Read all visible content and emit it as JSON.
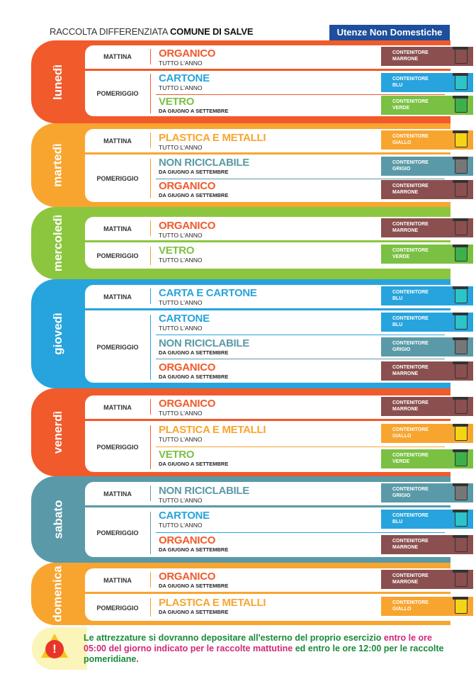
{
  "header": {
    "prefix": "RACCOLTA DIFFERENZIATA ",
    "comune": "COMUNE DI SALVE",
    "utenze": "Utenze Non Domestiche"
  },
  "labels": {
    "mattina": "MATTINA",
    "pomeriggio": "POMERIGGIO",
    "contenitore": "CONTENITORE"
  },
  "days": {
    "lunedi": {
      "name": "lunedì"
    },
    "martedi": {
      "name": "martedì"
    },
    "mercoledi": {
      "name": "mercoledì"
    },
    "giovedi": {
      "name": "giovedì"
    },
    "venerdi": {
      "name": "venerdì"
    },
    "sabato": {
      "name": "sabato"
    },
    "domenica": {
      "name": "domenica"
    }
  },
  "waste": {
    "organico": "ORGANICO",
    "cartone": "CARTONE",
    "vetro": "VETRO",
    "plastica": "PLASTICA E METALLI",
    "nonric": "NON RICICLABILE",
    "carta": "CARTA E CARTONE"
  },
  "periods": {
    "anno": "TUTTO L'ANNO",
    "estate": "DA GIUGNO A SETTEMBRE"
  },
  "colors_names": {
    "marrone": "MARRONE",
    "blu": "BLU",
    "verde": "VERDE",
    "giallo": "GIALLO",
    "grigio": "GRIGIO"
  },
  "colors": {
    "orange": "#f15a2b",
    "amber": "#f8a530",
    "green": "#8cc63f",
    "blue": "#27a4dd",
    "teal": "#5a9aa8",
    "brown": "#8b4f4f",
    "bin_blue": "#27a4dd",
    "bin_green": "#7ac143",
    "bin_yellow": "#f9a533",
    "bin_grey": "#5f9aa5"
  },
  "footer": {
    "line1": "Le attrezzature si dovranno depositare all'esterno del proprio esercizio ",
    "line2": "entro le ore 05:00 del giorno indicato per le raccolte mattutine",
    "line3": " ed entro le ore 12:00 per le raccolte pomeridiane",
    "line4": "."
  }
}
